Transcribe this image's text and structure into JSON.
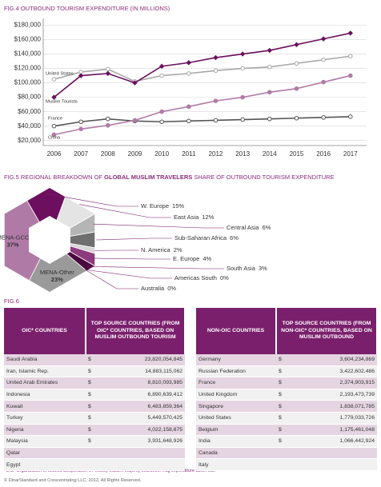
{
  "chart_data": [
    {
      "type": "line",
      "title": "FIG.4 OUTBOUND TOURISM EXPENDITURE (IN MILLIONS)",
      "x": [
        2006,
        2007,
        2008,
        2009,
        2010,
        2011,
        2012,
        2013,
        2014,
        2015,
        2016,
        2017
      ],
      "xlim": [
        2005.6,
        2017.6
      ],
      "ylim": [
        13000,
        185000
      ],
      "yticks": [
        {
          "value": 20000,
          "label": "$20,000"
        },
        {
          "value": 40000,
          "label": "$40,000"
        },
        {
          "value": 60000,
          "label": "$60,000"
        },
        {
          "value": 80000,
          "label": "$80,000"
        },
        {
          "value": 100000,
          "label": "$100,000"
        },
        {
          "value": 120000,
          "label": "$120,000"
        },
        {
          "value": 140000,
          "label": "$140,000"
        },
        {
          "value": 160000,
          "label": "$160,000"
        },
        {
          "value": 180000,
          "label": "$180,000"
        }
      ],
      "grid": true,
      "series": [
        {
          "name": "United States",
          "color": "#a8a8a8",
          "marker": "open-circle",
          "values": [
            105000,
            115000,
            119000,
            102000,
            110000,
            113000,
            117000,
            120000,
            122000,
            127000,
            132000,
            137000
          ]
        },
        {
          "name": "Muslim Tourists",
          "color": "#6b0f5e",
          "marker": "diamond",
          "values": [
            80000,
            110000,
            113000,
            100000,
            123000,
            128000,
            135000,
            140000,
            145000,
            153000,
            161000,
            169000
          ]
        },
        {
          "name": "France",
          "color": "#555555",
          "marker": "open-circle",
          "values": [
            40000,
            46000,
            50000,
            47000,
            46000,
            47000,
            48000,
            49000,
            50000,
            51000,
            52000,
            53000
          ]
        },
        {
          "name": "China",
          "color": "#b07aa6",
          "marker": "circle",
          "values": [
            28000,
            36000,
            41000,
            48000,
            60000,
            67000,
            75000,
            80000,
            87000,
            92000,
            101000,
            110000
          ]
        }
      ]
    },
    {
      "type": "pie",
      "title_parts": [
        "FIG.5 REGIONAL BREAKDOWN OF ",
        "GLOBAL MUSLIM TRAVELERS",
        " SHARE OF OUTBOUND TOURISM EXPENDITURE"
      ],
      "categories": [
        "W. Europe",
        "East Asia",
        "Central Asia",
        "Sub-Saharan Africa",
        "N. America",
        "E. Europe",
        "South Asia",
        "Americas South",
        "Australia",
        "MENA-Other",
        "MENA-GCC"
      ],
      "values": [
        15,
        12,
        6,
        6,
        2,
        4,
        3,
        0,
        0,
        23,
        37
      ],
      "value_labels": [
        "15%",
        "12%",
        "6%",
        "6%",
        "2%",
        "4%",
        "3%",
        "0%",
        "0%",
        "23%",
        "37%"
      ],
      "colors": [
        "#6b0f5e",
        "#e4e4e4",
        "#b5b5b5",
        "#6e6e6e",
        "#d6d6d6",
        "#8d3a7f",
        "#4a0a40",
        "#cfcfcf",
        "#bdbdbd",
        "#9a9a9a",
        "#b07aa6"
      ]
    }
  ],
  "table_section": {
    "title": "FIG.6",
    "tables": [
      {
        "headers": [
          "OIC* COUNTRIES",
          "TOP SOURCE COUNTRIES (FROM OIC* COUNTRIES, BASED ON MUSLIM OUTBOUND TOURISM"
        ],
        "rows": [
          [
            "Saudi Arabia",
            "$",
            "23,820,054,845"
          ],
          [
            "Iran, Islamic Rep.",
            "$",
            "14,883,115,062"
          ],
          [
            "United Arab Emirates",
            "$",
            "8,810,093,985"
          ],
          [
            "Indonesia",
            "$",
            "6,890,639,412"
          ],
          [
            "Kuwait",
            "$",
            "6,483,859,364"
          ],
          [
            "Turkey",
            "$",
            "5,449,570,425"
          ],
          [
            "Nigeria",
            "$",
            "4,022,158,875"
          ],
          [
            "Malaysia",
            "$",
            "3,931,648,926"
          ],
          [
            "Qatar"
          ],
          [
            "Egypt"
          ]
        ]
      },
      {
        "headers": [
          "NON-OIC COUNTRIES",
          "TOP SOURCE COUNTRIES (FROM NON-OIC* COUNTRIES, BASED ON MUSLIM OUTBOUND"
        ],
        "rows": [
          [
            "Germany",
            "$",
            "3,604,234,869"
          ],
          [
            "Russian Federation",
            "$",
            "3,422,602,486"
          ],
          [
            "France",
            "$",
            "2,374,903,915"
          ],
          [
            "United Kingdom",
            "$",
            "2,193,473,739"
          ],
          [
            "Singapore",
            "$",
            "1,838,071,785"
          ],
          [
            "United States",
            "$",
            "1,779,033,726"
          ],
          [
            "Belgium",
            "$",
            "1,175,461,048"
          ],
          [
            "India",
            "$",
            "1,066,442,924"
          ],
          [
            "Canada"
          ],
          [
            "Italy"
          ]
        ]
      }
    ],
    "footnote": "*OIC=Organization of Islamic Cooperation 57 mostly Muslim majority countries. Hajj expenditure taken out.",
    "copyright": "© DinarStandard and Crescentrating LLC, 2012, All Rights Reserved."
  }
}
